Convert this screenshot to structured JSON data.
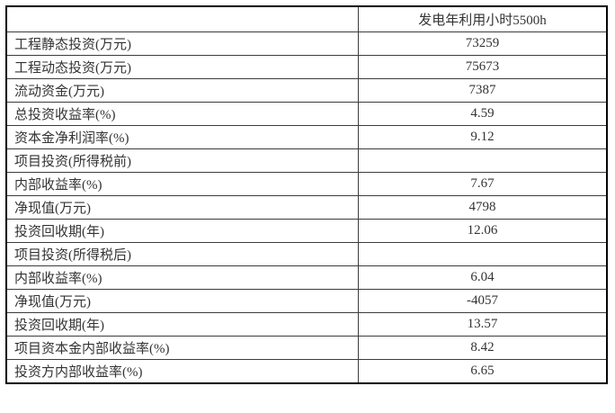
{
  "table": {
    "header": {
      "label": "",
      "value": "发电年利用小时5500h"
    },
    "rows": [
      {
        "label": "工程静态投资(万元)",
        "value": "73259"
      },
      {
        "label": "工程动态投资(万元)",
        "value": "75673"
      },
      {
        "label": "流动资金(万元)",
        "value": "7387"
      },
      {
        "label": "总投资收益率(%)",
        "value": "4.59"
      },
      {
        "label": "资本金净利润率(%)",
        "value": "9.12"
      },
      {
        "label": "项目投资(所得税前)",
        "value": ""
      },
      {
        "label": "内部收益率(%)",
        "value": "7.67"
      },
      {
        "label": "净现值(万元)",
        "value": "4798"
      },
      {
        "label": "投资回收期(年)",
        "value": "12.06"
      },
      {
        "label": "项目投资(所得税后)",
        "value": ""
      },
      {
        "label": "内部收益率(%)",
        "value": "6.04"
      },
      {
        "label": "净现值(万元)",
        "value": "-4057"
      },
      {
        "label": "投资回收期(年)",
        "value": "13.57"
      },
      {
        "label": "项目资本金内部收益率(%)",
        "value": "8.42"
      },
      {
        "label": "投资方内部收益率(%)",
        "value": "6.65"
      }
    ],
    "colors": {
      "outer_border": "#000000",
      "inner_border": "#3c3c3c",
      "text": "#333333",
      "background": "#ffffff"
    }
  }
}
